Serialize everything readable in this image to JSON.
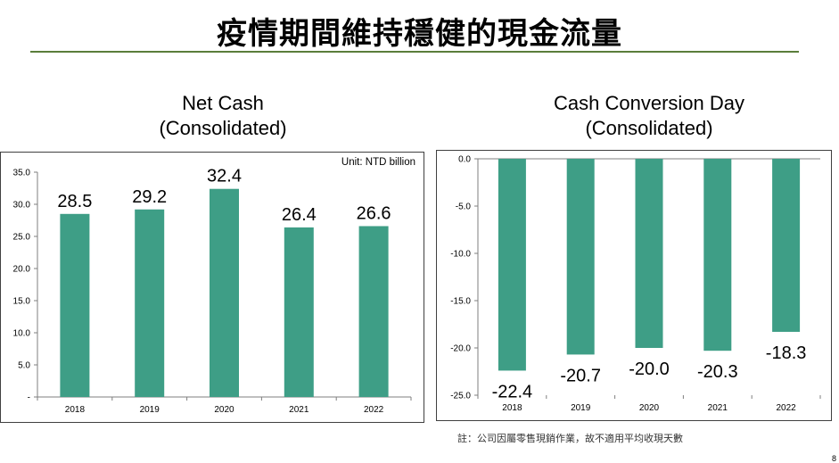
{
  "slide": {
    "title": "疫情期間維持穩健的現金流量",
    "footnote": "註：公司因屬零售現銷作業，故不適用平均收現天數",
    "page_number": "8"
  },
  "colors": {
    "bar": "#3e9e86",
    "title_rule": "#5a7d3a",
    "border": "#404040"
  },
  "chart_data": [
    {
      "type": "bar",
      "title_line1": "Net Cash",
      "title_line2": "(Consolidated)",
      "unit": "Unit: NTD billion",
      "categories": [
        "2018",
        "2019",
        "2020",
        "2021",
        "2022"
      ],
      "values": [
        28.5,
        29.2,
        32.4,
        26.4,
        26.6
      ],
      "data_labels": [
        "28.5",
        "29.2",
        "32.4",
        "26.4",
        "26.6"
      ],
      "ylim": [
        0,
        35
      ],
      "yticks": [
        0,
        5,
        10,
        15,
        20,
        25,
        30,
        35
      ],
      "ytick_labels": [
        "-",
        "5.0",
        "10.0",
        "15.0",
        "20.0",
        "25.0",
        "30.0",
        "35.0"
      ],
      "xlabel": "",
      "ylabel": "",
      "grid": false
    },
    {
      "type": "bar",
      "title_line1": "Cash Conversion Day",
      "title_line2": "(Consolidated)",
      "categories": [
        "2018",
        "2019",
        "2020",
        "2021",
        "2022"
      ],
      "values": [
        -22.4,
        -20.7,
        -20.0,
        -20.3,
        -18.3
      ],
      "data_labels": [
        "-22.4",
        "-20.7",
        "-20.0",
        "-20.3",
        "-18.3"
      ],
      "ylim": [
        -25,
        0
      ],
      "yticks": [
        0,
        -5,
        -10,
        -15,
        -20,
        -25
      ],
      "ytick_labels": [
        "0.0",
        "-5.0",
        "-10.0",
        "-15.0",
        "-20.0",
        "-25.0"
      ],
      "xlabel": "",
      "ylabel": "",
      "grid": false
    }
  ]
}
